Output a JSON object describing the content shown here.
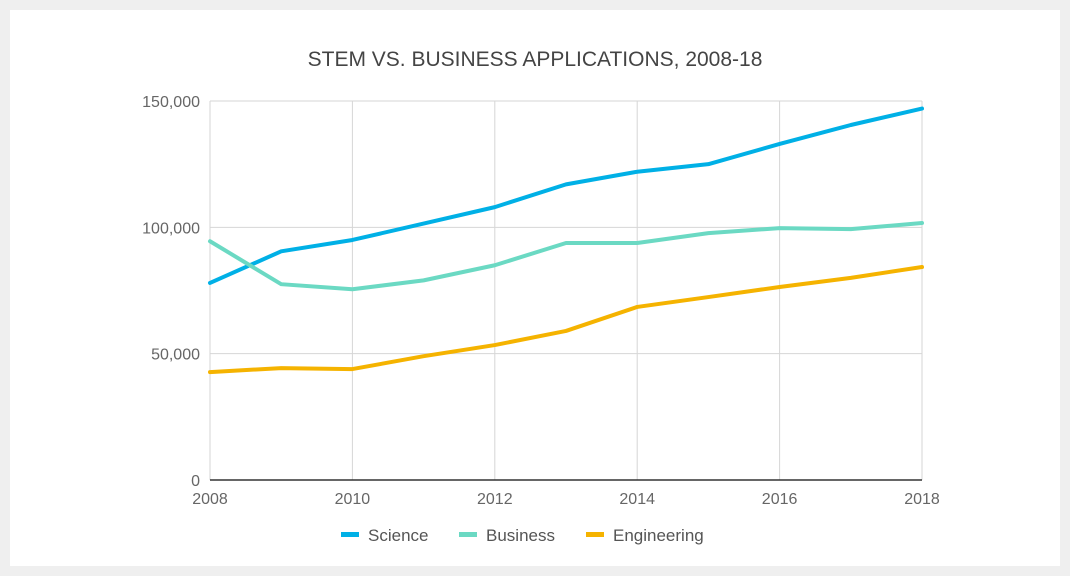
{
  "chart_data": {
    "type": "line",
    "title": "STEM VS. BUSINESS APPLICATIONS, 2008-18",
    "xlabel": "",
    "ylabel": "",
    "x": [
      2008,
      2009,
      2010,
      2011,
      2012,
      2013,
      2014,
      2015,
      2016,
      2017,
      2018
    ],
    "xlim": [
      2008,
      2018
    ],
    "ylim": [
      0,
      150000
    ],
    "x_ticks": [
      2008,
      2010,
      2012,
      2014,
      2016,
      2018
    ],
    "y_ticks": [
      0,
      50000,
      100000,
      150000
    ],
    "y_tick_labels": [
      "0",
      "50,000",
      "100,000",
      "150,000"
    ],
    "grid": true,
    "legend_position": "bottom",
    "series": [
      {
        "name": "Science",
        "color": "#00b0e6",
        "values": [
          78000,
          90500,
          95000,
          101500,
          108000,
          117000,
          122000,
          125000,
          133000,
          140500,
          147000
        ]
      },
      {
        "name": "Business",
        "color": "#6bd9c3",
        "values": [
          94500,
          77500,
          75500,
          79000,
          85000,
          93800,
          93800,
          97700,
          99700,
          99300,
          101700
        ]
      },
      {
        "name": "Engineering",
        "color": "#f5b300",
        "values": [
          42700,
          44300,
          43900,
          49000,
          53400,
          59000,
          68500,
          72400,
          76400,
          80000,
          84300
        ]
      }
    ]
  }
}
